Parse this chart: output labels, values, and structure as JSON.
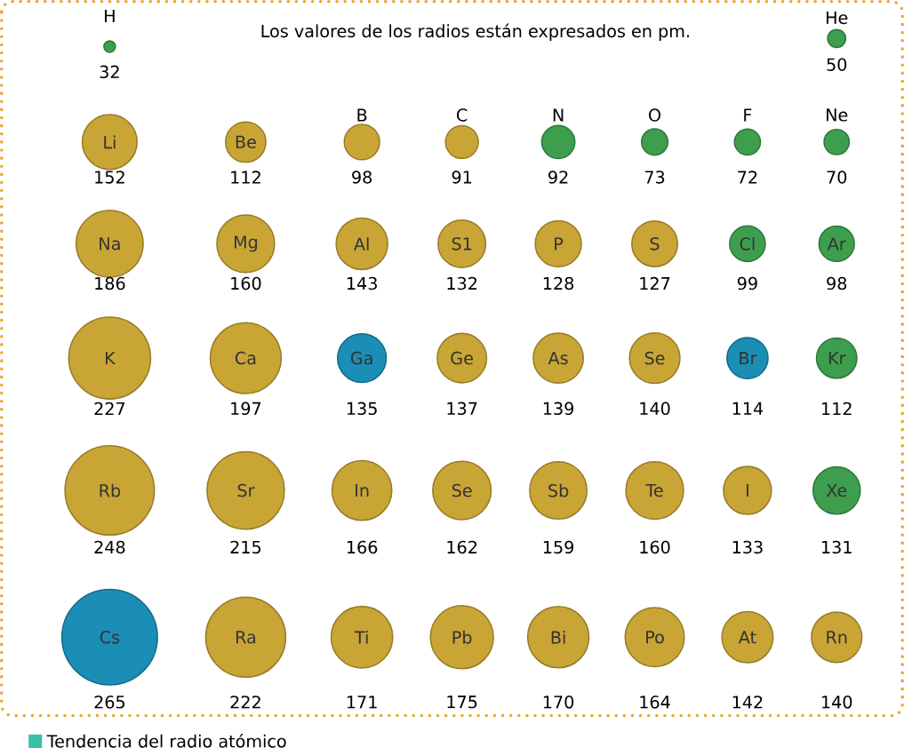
{
  "chart_data": {
    "type": "other",
    "title": "Los valores de los radios están expresados en pm.",
    "categories": [
      "H",
      "He",
      "Li",
      "Be",
      "B",
      "C",
      "N",
      "O",
      "F",
      "Ne",
      "Na",
      "Mg",
      "Al",
      "S1",
      "P",
      "S",
      "Cl",
      "Ar",
      "K",
      "Ca",
      "Ga",
      "Ge",
      "As",
      "Se",
      "Br",
      "Kr",
      "Rb",
      "Sr",
      "In",
      "Se",
      "Sb",
      "Te",
      "I",
      "Xe",
      "Cs",
      "Ra",
      "Ti",
      "Pb",
      "Bi",
      "Po",
      "At",
      "Rn"
    ],
    "values": [
      32,
      50,
      152,
      112,
      98,
      91,
      92,
      73,
      72,
      70,
      186,
      160,
      143,
      132,
      128,
      127,
      99,
      98,
      227,
      197,
      135,
      137,
      139,
      140,
      114,
      112,
      248,
      215,
      166,
      162,
      159,
      160,
      133,
      131,
      265,
      222,
      171,
      175,
      170,
      164,
      142,
      140
    ],
    "colors": [
      "#3d9f4e",
      "#3d9f4e",
      "#c9a536",
      "#c9a536",
      "#c9a536",
      "#c9a536",
      "#3d9f4e",
      "#3d9f4e",
      "#3d9f4e",
      "#3d9f4e",
      "#c9a536",
      "#c9a536",
      "#c9a536",
      "#c9a536",
      "#c9a536",
      "#c9a536",
      "#3d9f4e",
      "#3d9f4e",
      "#c9a536",
      "#c9a536",
      "#1b8eb5",
      "#c9a536",
      "#c9a536",
      "#c9a536",
      "#1b8eb5",
      "#3d9f4e",
      "#c9a536",
      "#c9a536",
      "#c9a536",
      "#c9a536",
      "#c9a536",
      "#c9a536",
      "#c9a536",
      "#3d9f4e",
      "#1b8eb5",
      "#c9a536",
      "#c9a536",
      "#c9a536",
      "#c9a536",
      "#c9a536",
      "#c9a536",
      "#c9a536"
    ],
    "data_labels": true,
    "annotations": [
      "Tendencia del radio atómico"
    ]
  }
}
